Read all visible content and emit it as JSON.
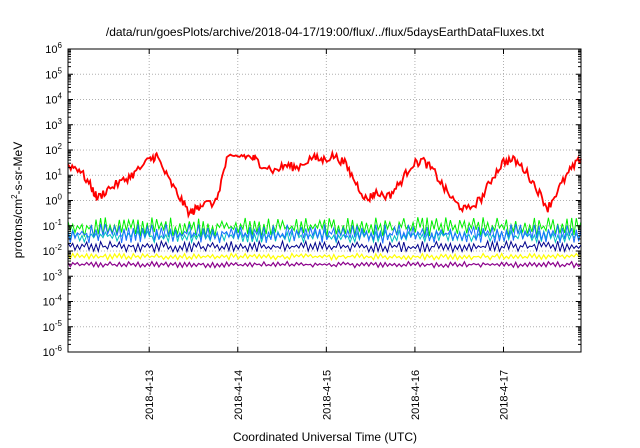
{
  "chart_data": {
    "type": "line",
    "title": "/data/run/goesPlots/archive/2018-04-17/19:00/flux/../flux/5daysEarthDataFluxes.txt",
    "xlabel": "Coordinated Universal Time (UTC)",
    "ylabel": {
      "base": "protons/cm",
      "sup": "2",
      "rest": "-s-sr-MeV"
    },
    "scale": {
      "y": "log",
      "x": "time (days)"
    },
    "xlim": [
      "2018-04-12 02:00",
      "2018-04-17 21:00"
    ],
    "ylim": [
      1e-06,
      1000000.0
    ],
    "y_ticks": [
      {
        "exp": "-6",
        "value": 1e-06
      },
      {
        "exp": "-5",
        "value": 1e-05
      },
      {
        "exp": "-4",
        "value": 0.0001
      },
      {
        "exp": "-3",
        "value": 0.001
      },
      {
        "exp": "-2",
        "value": 0.01
      },
      {
        "exp": "-1",
        "value": 0.1
      },
      {
        "exp": "0",
        "value": 1
      },
      {
        "exp": "1",
        "value": 10
      },
      {
        "exp": "2",
        "value": 100
      },
      {
        "exp": "3",
        "value": 1000
      },
      {
        "exp": "4",
        "value": 10000
      },
      {
        "exp": "5",
        "value": 100000
      },
      {
        "exp": "6",
        "value": 1000000
      }
    ],
    "x_ticks": [
      {
        "label": "2018-4-13",
        "date": "2018-04-13"
      },
      {
        "label": "2018-4-14",
        "date": "2018-04-14"
      },
      {
        "label": "2018-4-15",
        "date": "2018-04-15"
      },
      {
        "label": "2018-4-16",
        "date": "2018-04-16"
      },
      {
        "label": "2018-4-17",
        "date": "2018-04-17"
      }
    ],
    "grid": true,
    "series": [
      {
        "color": "#ff0000",
        "x": [
          "2018-04-12 02:00",
          "2018-04-12 05:00",
          "2018-04-12 08:00",
          "2018-04-12 10:00",
          "2018-04-12 13:00",
          "2018-04-12 17:00",
          "2018-04-12 20:00",
          "2018-04-13 00:00",
          "2018-04-13 02:00",
          "2018-04-13 05:00",
          "2018-04-13 08:00",
          "2018-04-13 11:00",
          "2018-04-13 13:00",
          "2018-04-13 14:00",
          "2018-04-13 18:00",
          "2018-04-13 21:00",
          "2018-04-14 01:00",
          "2018-04-14 04:00",
          "2018-04-14 06:00",
          "2018-04-14 10:00",
          "2018-04-14 13:00",
          "2018-04-14 16:00",
          "2018-04-14 20:00",
          "2018-04-14 23:00",
          "2018-04-15 02:00",
          "2018-04-15 05:00",
          "2018-04-15 08:00",
          "2018-04-15 11:00",
          "2018-04-15 13:00",
          "2018-04-15 17:00",
          "2018-04-15 20:00",
          "2018-04-15 23:00",
          "2018-04-16 02:00",
          "2018-04-16 05:00",
          "2018-04-16 08:00",
          "2018-04-16 11:00",
          "2018-04-16 14:00",
          "2018-04-16 18:00",
          "2018-04-16 21:00",
          "2018-04-17 00:00",
          "2018-04-17 03:00",
          "2018-04-17 06:00",
          "2018-04-17 09:00",
          "2018-04-17 12:00",
          "2018-04-17 15:00",
          "2018-04-17 18:00",
          "2018-04-17 21:00"
        ],
        "values": [
          25,
          18,
          4,
          1.2,
          3,
          6,
          12,
          40,
          60,
          8,
          1.5,
          0.3,
          0.5,
          0.7,
          0.8,
          40,
          60,
          50,
          30,
          15,
          25,
          20,
          50,
          40,
          60,
          30,
          5,
          1,
          2,
          1.5,
          5,
          25,
          40,
          15,
          3,
          0.8,
          0.4,
          1.2,
          8,
          35,
          40,
          15,
          3,
          0.5,
          3,
          15,
          45
        ]
      },
      {
        "color": "#00ee00",
        "values": [
          0.12
        ],
        "band": [
          0.035,
          0.22
        ]
      },
      {
        "color": "#00c0c0",
        "values": [
          0.045
        ],
        "band": [
          0.022,
          0.07
        ]
      },
      {
        "color": "#1a6fff",
        "values": [
          0.05
        ],
        "band": [
          0.02,
          0.12
        ]
      },
      {
        "color": "#00008b",
        "values": [
          0.018
        ],
        "band": [
          0.009,
          0.025
        ]
      },
      {
        "color": "#ffff00",
        "values": [
          0.006
        ],
        "band": [
          0.0045,
          0.008
        ]
      },
      {
        "color": "#8b008b",
        "values": [
          0.003
        ],
        "band": [
          0.0022,
          0.0038
        ]
      }
    ]
  }
}
